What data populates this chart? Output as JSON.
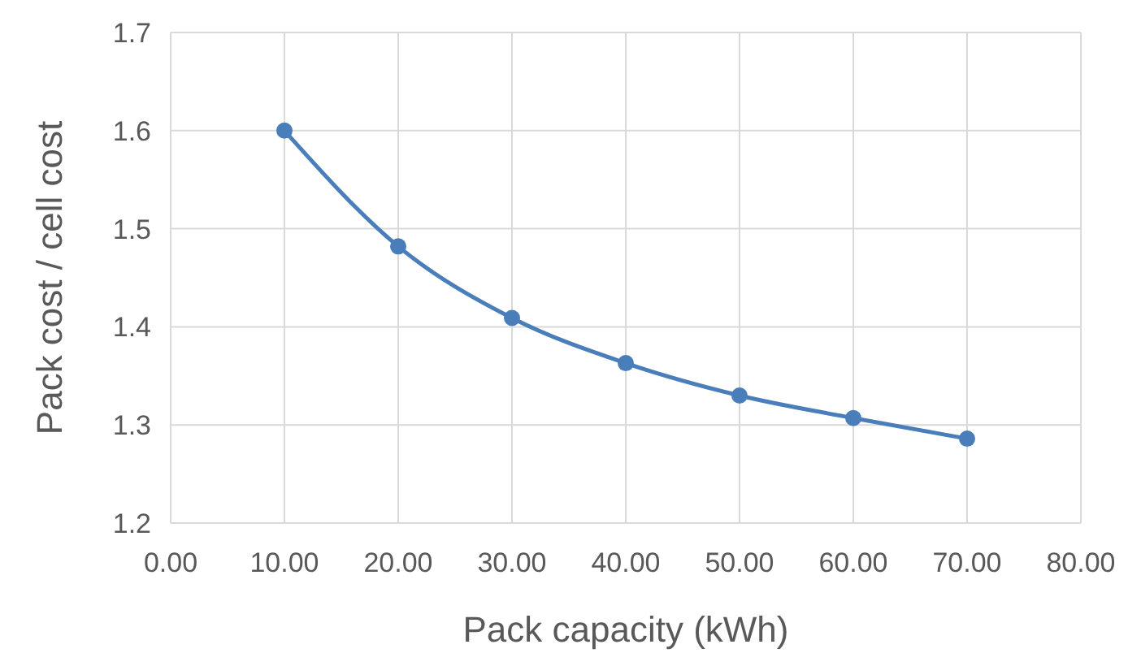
{
  "chart_data": {
    "type": "line",
    "xlabel": "Pack capacity (kWh)",
    "ylabel": "Pack cost / cell cost",
    "x": [
      10,
      20,
      30,
      40,
      50,
      60,
      70
    ],
    "series": [
      {
        "color": "#4a7ebb",
        "values": [
          1.6,
          1.482,
          1.409,
          1.363,
          1.33,
          1.307,
          1.286
        ]
      }
    ],
    "xlim": [
      0,
      80
    ],
    "xticks": [
      {
        "value": 0,
        "label": "0.00"
      },
      {
        "value": 10,
        "label": "10.00"
      },
      {
        "value": 20,
        "label": "20.00"
      },
      {
        "value": 30,
        "label": "30.00"
      },
      {
        "value": 40,
        "label": "40.00"
      },
      {
        "value": 50,
        "label": "50.00"
      },
      {
        "value": 60,
        "label": "60.00"
      },
      {
        "value": 70,
        "label": "70.00"
      },
      {
        "value": 80,
        "label": "80.00"
      }
    ],
    "ylim": [
      1.2,
      1.7
    ],
    "yticks": [
      1.2,
      1.3,
      1.4,
      1.5,
      1.6,
      1.7
    ],
    "grid": true,
    "marker": "circle",
    "line_style": "solid"
  }
}
